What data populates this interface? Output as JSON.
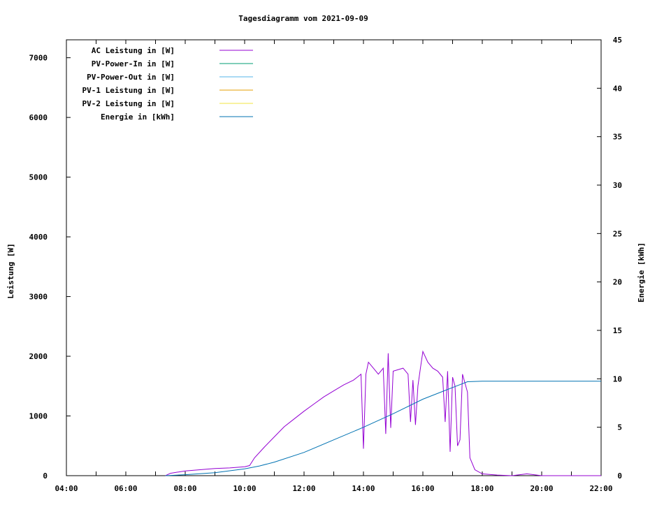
{
  "chart_data": {
    "type": "line",
    "title": "Tagesdiagramm vom 2021-09-09",
    "xlabel": "",
    "ylabel": "Leistung [W]",
    "y2label": "Energie [kWh]",
    "xlim": [
      "04:00",
      "22:00"
    ],
    "ylim": [
      0,
      7300
    ],
    "y2lim": [
      0,
      45
    ],
    "xticks": [
      "04:00",
      "06:00",
      "08:00",
      "10:00",
      "12:00",
      "14:00",
      "16:00",
      "18:00",
      "20:00",
      "22:00"
    ],
    "yticks": [
      0,
      1000,
      2000,
      3000,
      4000,
      5000,
      6000,
      7000
    ],
    "y2ticks": [
      0,
      5,
      10,
      15,
      20,
      25,
      30,
      35,
      40,
      45
    ],
    "grid": false,
    "legend_position": "top-left",
    "series": [
      {
        "name": "AC Leistung in [W]",
        "color": "#9400d3",
        "axis": "y",
        "x": [
          "07:20",
          "07:30",
          "08:00",
          "08:30",
          "09:00",
          "09:30",
          "10:00",
          "10:10",
          "10:20",
          "10:40",
          "11:00",
          "11:20",
          "11:40",
          "12:00",
          "12:20",
          "12:40",
          "13:00",
          "13:20",
          "13:40",
          "13:55",
          "14:00",
          "14:05",
          "14:10",
          "14:20",
          "14:30",
          "14:40",
          "14:45",
          "14:50",
          "14:55",
          "15:00",
          "15:20",
          "15:30",
          "15:35",
          "15:40",
          "15:45",
          "15:50",
          "15:55",
          "16:00",
          "16:10",
          "16:20",
          "16:30",
          "16:40",
          "16:45",
          "16:50",
          "16:55",
          "17:00",
          "17:05",
          "17:10",
          "17:15",
          "17:20",
          "17:30",
          "17:35",
          "17:45",
          "18:00",
          "18:30",
          "19:00",
          "19:30",
          "19:50",
          "20:00",
          "22:00"
        ],
        "values": [
          0,
          40,
          80,
          100,
          120,
          130,
          150,
          170,
          300,
          480,
          650,
          820,
          950,
          1080,
          1200,
          1320,
          1420,
          1520,
          1600,
          1700,
          450,
          1700,
          1900,
          1800,
          1700,
          1800,
          700,
          2050,
          800,
          1750,
          1800,
          1700,
          900,
          1600,
          850,
          1500,
          1800,
          2080,
          1900,
          1800,
          1750,
          1650,
          900,
          1750,
          400,
          1650,
          1500,
          500,
          600,
          1700,
          1400,
          300,
          100,
          30,
          10,
          0,
          30,
          10,
          0,
          0
        ]
      },
      {
        "name": "PV-Power-In in [W]",
        "color": "#009e73",
        "axis": "y",
        "x": [],
        "values": []
      },
      {
        "name": "PV-Power-Out in [W]",
        "color": "#56b4e9",
        "axis": "y",
        "x": [],
        "values": []
      },
      {
        "name": "PV-1 Leistung in [W]",
        "color": "#e69f00",
        "axis": "y",
        "x": [],
        "values": []
      },
      {
        "name": "PV-2 Leistung in [W]",
        "color": "#f0e442",
        "axis": "y",
        "x": [],
        "values": []
      },
      {
        "name": "Energie in [kWh]",
        "color": "#0072b2",
        "axis": "y2",
        "x": [
          "07:20",
          "08:00",
          "09:00",
          "10:00",
          "10:30",
          "11:00",
          "12:00",
          "13:00",
          "14:00",
          "15:00",
          "16:00",
          "17:00",
          "17:30",
          "18:00",
          "22:00"
        ],
        "values": [
          0,
          0.1,
          0.3,
          0.7,
          1.0,
          1.4,
          2.4,
          3.7,
          5.0,
          6.4,
          7.9,
          9.1,
          9.7,
          9.75,
          9.75
        ]
      }
    ]
  }
}
